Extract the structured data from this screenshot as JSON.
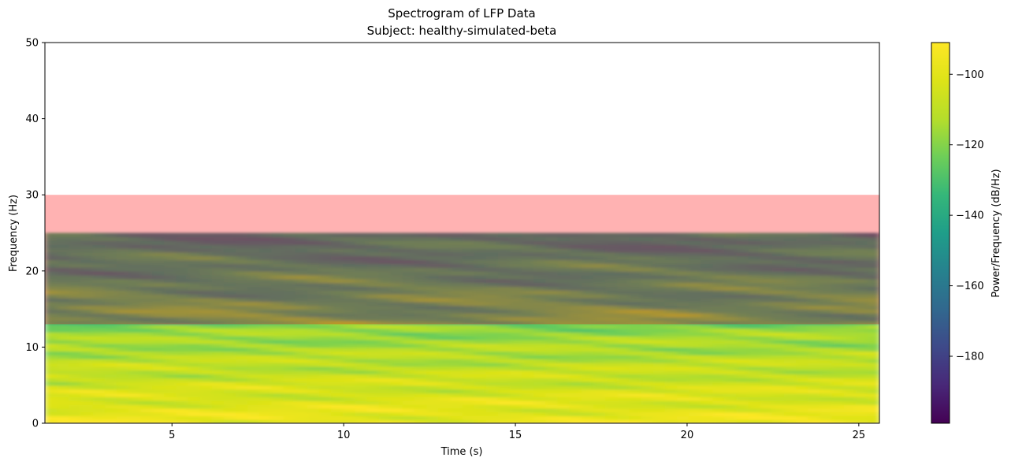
{
  "chart_data": {
    "type": "heatmap",
    "title": "Spectrogram of LFP Data",
    "subtitle": "Subject: healthy-simulated-beta",
    "xlabel": "Time (s)",
    "ylabel": "Frequency (Hz)",
    "xlim": [
      1.3,
      25.6
    ],
    "ylim": [
      0,
      50
    ],
    "xticks": [
      5,
      10,
      15,
      20,
      25
    ],
    "yticks": [
      0,
      10,
      20,
      30,
      40,
      50
    ],
    "spectrogram_max_freq": 25,
    "colorbar": {
      "label": "Power/Frequency (dB/Hz)",
      "colormap": "viridis",
      "range": [
        -199,
        -91
      ],
      "ticks": [
        -100,
        -120,
        -140,
        -160,
        -180
      ]
    },
    "bands": [
      {
        "freq_range": [
          13,
          30
        ],
        "color": "#ff0000",
        "alpha": 0.3
      }
    ]
  }
}
